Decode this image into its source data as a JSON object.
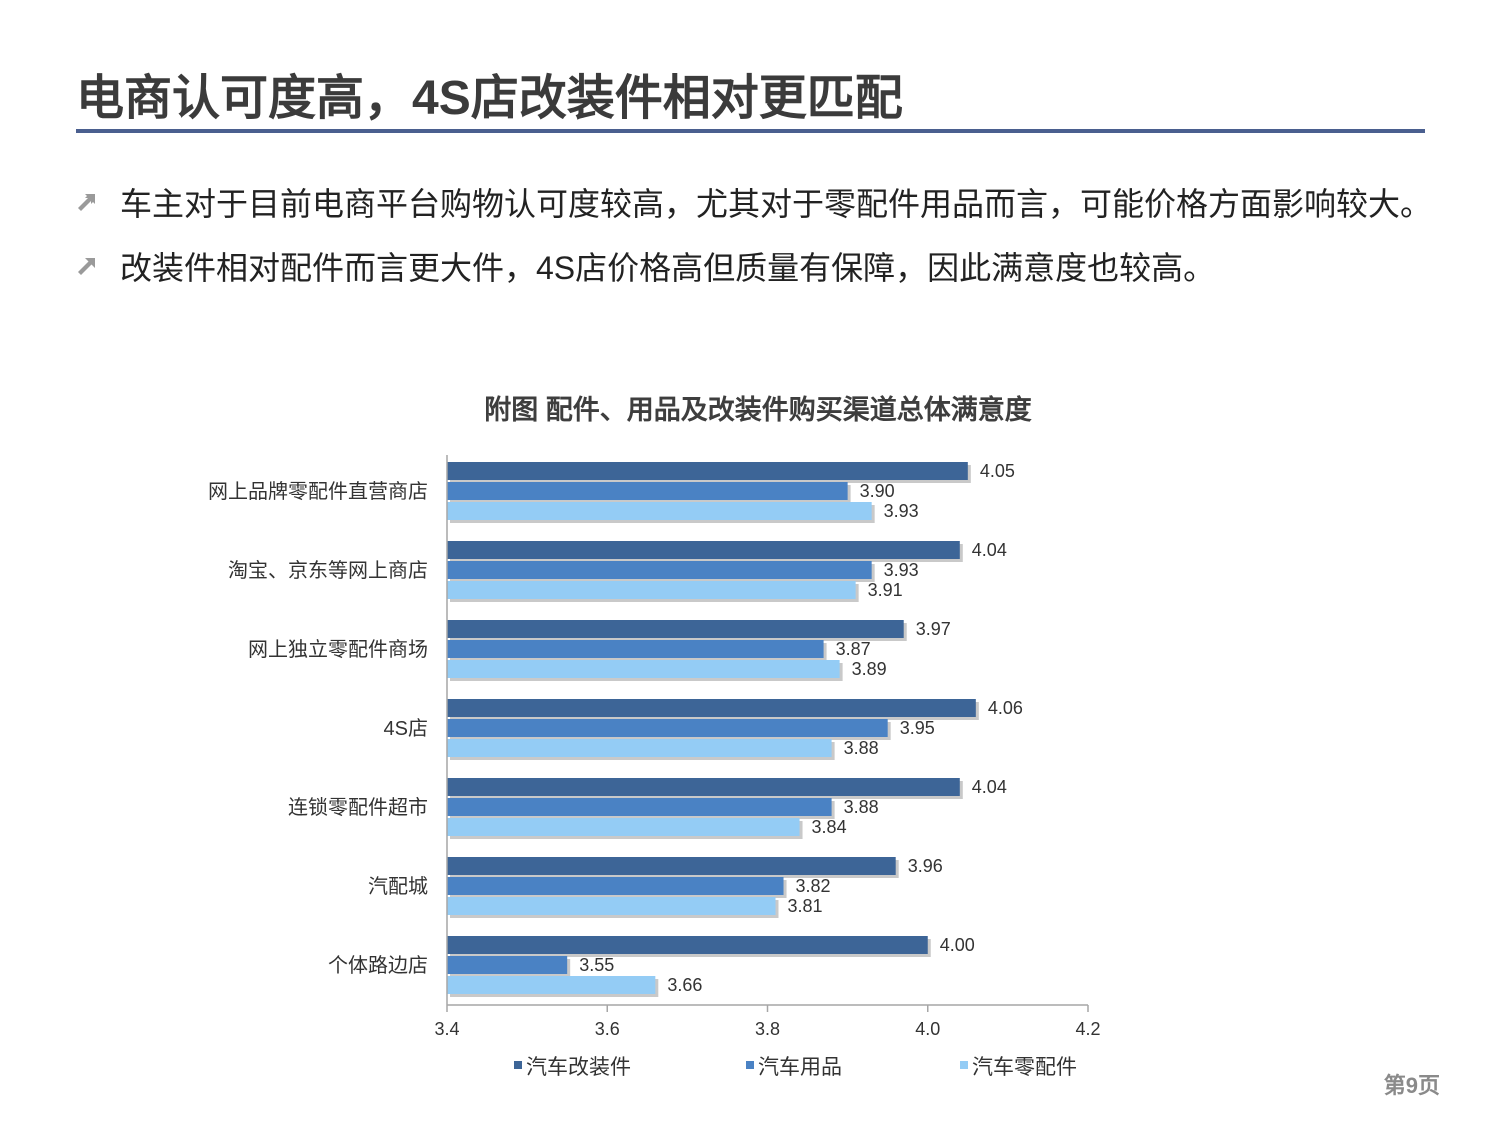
{
  "page": {
    "title": "电商认可度高，4S店改装件相对更匹配",
    "page_number": "第9页",
    "colors": {
      "title_rule": "#4a5f8f",
      "bullet_icon": "#9a9a9a"
    }
  },
  "bullets": [
    {
      "icon": "arrow-up-right-icon",
      "text": "车主对于目前电商平台购物认可度较高，尤其对于零配件用品而言，可能价格方面影响较大。"
    },
    {
      "icon": "arrow-up-right-icon",
      "text": "改装件相对配件而言更大件，4S店价格高但质量有保障，因此满意度也较高。"
    }
  ],
  "chart_data": {
    "type": "bar",
    "orientation": "horizontal",
    "title": "附图  配件、用品及改装件购买渠道总体满意度",
    "categories": [
      "网上品牌零配件直营商店",
      "淘宝、京东等网上商店",
      "网上独立零配件商场",
      "4S店",
      "连锁零配件超市",
      "汽配城",
      "个体路边店"
    ],
    "series": [
      {
        "name": "汽车改装件",
        "color": "#3d6597",
        "values": [
          4.05,
          4.04,
          3.97,
          4.06,
          4.04,
          3.96,
          4.0
        ],
        "labels": [
          "4.05",
          "4.04",
          "3.97",
          "4.06",
          "4.04",
          "3.96",
          "4.00"
        ]
      },
      {
        "name": "汽车用品",
        "color": "#4a82c4",
        "values": [
          3.9,
          3.93,
          3.87,
          3.95,
          3.88,
          3.82,
          3.55
        ],
        "labels": [
          "3.90",
          "3.93",
          "3.87",
          "3.95",
          "3.88",
          "3.82",
          "3.55"
        ]
      },
      {
        "name": "汽车零配件",
        "color": "#94ccf5",
        "values": [
          3.93,
          3.91,
          3.89,
          3.88,
          3.84,
          3.81,
          3.66
        ],
        "labels": [
          "3.93",
          "3.91",
          "3.89",
          "3.88",
          "3.84",
          "3.81",
          "3.66"
        ]
      }
    ],
    "xlim": [
      3.4,
      4.2
    ],
    "xticks": [
      3.4,
      3.6,
      3.8,
      4.0,
      4.2
    ],
    "xtick_labels": [
      "3.4",
      "3.6",
      "3.8",
      "4.0",
      "4.2"
    ],
    "grid": false,
    "legend_position": "bottom"
  }
}
